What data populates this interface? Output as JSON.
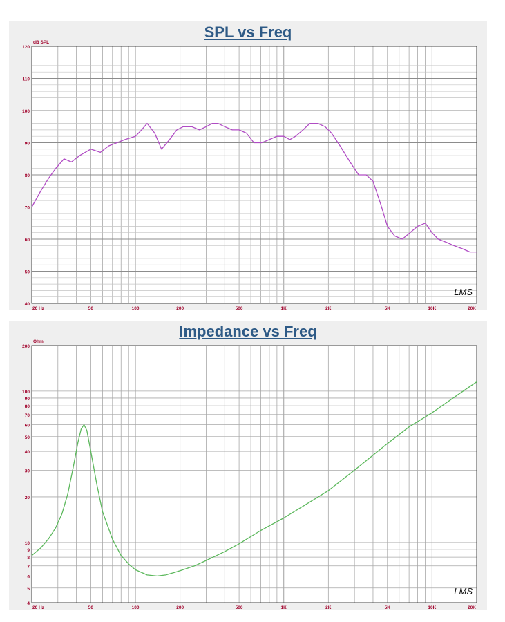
{
  "chart_data": [
    {
      "type": "line",
      "title": "SPL vs Freq",
      "ylabel": "dB SPL",
      "xscale": "log",
      "xlim": [
        20,
        20000
      ],
      "ylim": [
        40,
        120
      ],
      "grid": true,
      "x_ticks": [
        {
          "value": 20,
          "label": "20 Hz"
        },
        {
          "value": 50,
          "label": "50"
        },
        {
          "value": 100,
          "label": "100"
        },
        {
          "value": 200,
          "label": "200"
        },
        {
          "value": 500,
          "label": "500"
        },
        {
          "value": 1000,
          "label": "1K"
        },
        {
          "value": 2000,
          "label": "2K"
        },
        {
          "value": 5000,
          "label": "5K"
        },
        {
          "value": 10000,
          "label": "10K"
        },
        {
          "value": 20000,
          "label": "20K"
        }
      ],
      "y_ticks": [
        {
          "value": 120,
          "label": "120"
        },
        {
          "value": 110,
          "label": "110"
        },
        {
          "value": 100,
          "label": "100"
        },
        {
          "value": 90,
          "label": "90"
        },
        {
          "value": 80,
          "label": "80"
        },
        {
          "value": 70,
          "label": "70"
        },
        {
          "value": 60,
          "label": "60"
        },
        {
          "value": 50,
          "label": "50"
        },
        {
          "value": 40,
          "label": "40"
        }
      ],
      "watermark": "LMS",
      "series": [
        {
          "color": "#b04cc4",
          "x": [
            20,
            23,
            26,
            29,
            33,
            37,
            42,
            50,
            58,
            66,
            75,
            85,
            100,
            110,
            120,
            135,
            150,
            170,
            190,
            210,
            240,
            270,
            300,
            330,
            360,
            400,
            450,
            500,
            560,
            630,
            710,
            800,
            900,
            1000,
            1100,
            1200,
            1350,
            1500,
            1700,
            1900,
            2100,
            2400,
            2800,
            3200,
            3600,
            4000,
            4500,
            5000,
            5600,
            6300,
            7100,
            8000,
            9000,
            10000,
            11000,
            12500,
            14000,
            16000,
            18000,
            20000
          ],
          "y": [
            70,
            75,
            79,
            82,
            85,
            84,
            86,
            88,
            87,
            89,
            90,
            91,
            92,
            94,
            96,
            93,
            88,
            91,
            94,
            95,
            95,
            94,
            95,
            96,
            96,
            95,
            94,
            94,
            93,
            90,
            90,
            91,
            92,
            92,
            91,
            92,
            94,
            96,
            96,
            95,
            93,
            89,
            84,
            80,
            80,
            78,
            71,
            64,
            61,
            60,
            62,
            64,
            65,
            62,
            60,
            59,
            58,
            57,
            56,
            56
          ]
        }
      ]
    },
    {
      "type": "line",
      "title": "Impedance vs Freq",
      "ylabel": "Ohm",
      "xscale": "log",
      "yscale": "log",
      "xlim": [
        20,
        20000
      ],
      "ylim": [
        4,
        200
      ],
      "grid": true,
      "x_ticks": [
        {
          "value": 20,
          "label": "20 Hz"
        },
        {
          "value": 50,
          "label": "50"
        },
        {
          "value": 100,
          "label": "100"
        },
        {
          "value": 200,
          "label": "200"
        },
        {
          "value": 500,
          "label": "500"
        },
        {
          "value": 1000,
          "label": "1K"
        },
        {
          "value": 2000,
          "label": "2K"
        },
        {
          "value": 5000,
          "label": "5K"
        },
        {
          "value": 10000,
          "label": "10K"
        },
        {
          "value": 20000,
          "label": "20K"
        }
      ],
      "y_ticks": [
        {
          "value": 200,
          "label": "200"
        },
        {
          "value": 100,
          "label": "100"
        },
        {
          "value": 90,
          "label": "90"
        },
        {
          "value": 80,
          "label": "80"
        },
        {
          "value": 70,
          "label": "70"
        },
        {
          "value": 60,
          "label": "60"
        },
        {
          "value": 50,
          "label": "50"
        },
        {
          "value": 40,
          "label": "40"
        },
        {
          "value": 30,
          "label": "30"
        },
        {
          "value": 20,
          "label": "20"
        },
        {
          "value": 10,
          "label": "10"
        },
        {
          "value": 9,
          "label": "9"
        },
        {
          "value": 8,
          "label": "8"
        },
        {
          "value": 7,
          "label": "7"
        },
        {
          "value": 6,
          "label": "6"
        },
        {
          "value": 5,
          "label": "5"
        },
        {
          "value": 4,
          "label": "4"
        }
      ],
      "watermark": "LMS",
      "series": [
        {
          "color": "#5cb85c",
          "x": [
            20,
            23,
            26,
            29,
            32,
            35,
            38,
            41,
            43,
            45,
            47,
            50,
            55,
            60,
            70,
            80,
            90,
            100,
            120,
            140,
            160,
            180,
            200,
            250,
            300,
            400,
            500,
            700,
            1000,
            1500,
            2000,
            3000,
            5000,
            7000,
            10000,
            15000,
            20000
          ],
          "y": [
            8.2,
            9.2,
            10.6,
            12.5,
            15.5,
            21,
            31,
            46,
            56,
            60,
            55,
            40,
            24,
            16,
            10.5,
            8.2,
            7.2,
            6.6,
            6.1,
            6.0,
            6.1,
            6.3,
            6.5,
            7.0,
            7.6,
            8.7,
            9.8,
            12,
            14.5,
            18.5,
            22,
            30,
            45,
            58,
            72,
            95,
            115
          ]
        }
      ]
    }
  ]
}
